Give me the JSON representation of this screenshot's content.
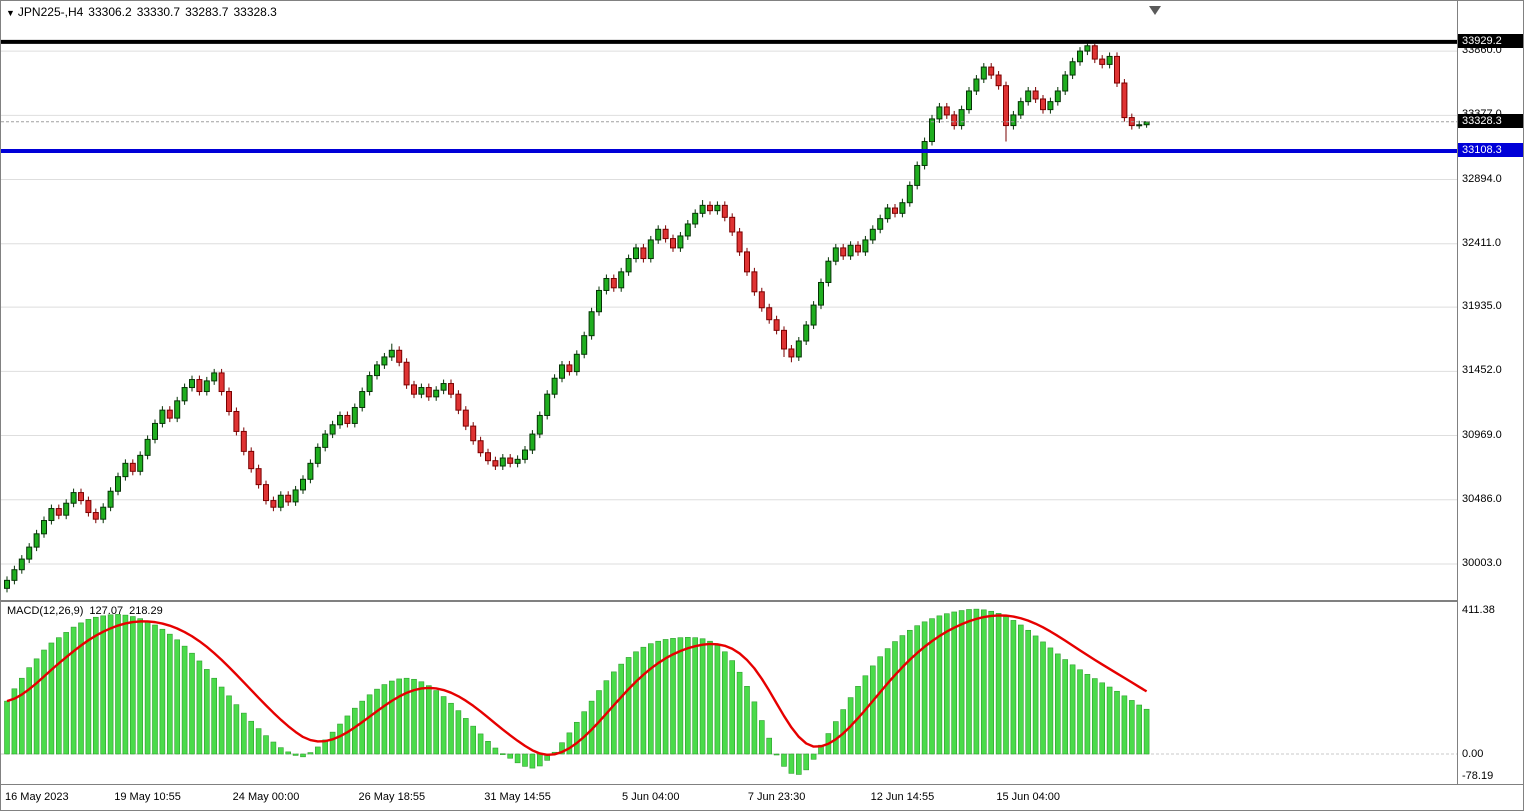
{
  "header": {
    "dropdown_icon": "▼",
    "symbol_period": "JPN225-,H4",
    "open": "33306.2",
    "high": "33330.7",
    "low": "33283.7",
    "close": "33328.3"
  },
  "indicator": {
    "name": "MACD(12,26,9)",
    "macd_value": "127.07",
    "signal_value": "218.29"
  },
  "colors": {
    "bull": "#1FAE1F",
    "bull_border": "#063306",
    "bear": "#DF3333",
    "bear_border": "#7A0000",
    "macd_bar": "#4ADB4A",
    "macd_bar_border": "#2E9E2E",
    "signal_line": "#E60000",
    "level_black": "#000000",
    "level_blue": "#0000D8",
    "grid": "#DEDEDE",
    "zero_line": "#C8C8C8",
    "current_price_line": "#A0A0A0",
    "axis_text": "#000000",
    "background": "#FFFFFF"
  },
  "chart_data": [
    {
      "type": "candlestick",
      "symbol": "JPN225-",
      "timeframe": "H4",
      "y_ticks": [
        30003.0,
        30486.0,
        30969.0,
        31452.0,
        31935.0,
        32411.0,
        32894.0,
        33377.0,
        33860.0
      ],
      "ylim": [
        29780,
        33990
      ],
      "x_ticks": [
        {
          "label": "16 May 2023",
          "bar": 0
        },
        {
          "label": "19 May 10:55",
          "bar": 19
        },
        {
          "label": "24 May 00:00",
          "bar": 35
        },
        {
          "label": "26 May 18:55",
          "bar": 52
        },
        {
          "label": "31 May 14:55",
          "bar": 69
        },
        {
          "label": "5 Jun 04:00",
          "bar": 87
        },
        {
          "label": "7 Jun 23:30",
          "bar": 104
        },
        {
          "label": "12 Jun 14:55",
          "bar": 121
        },
        {
          "label": "15 Jun 04:00",
          "bar": 138
        }
      ],
      "hlines": [
        {
          "price": 33929.2,
          "color": "#000000",
          "width": 4
        },
        {
          "price": 33108.3,
          "color": "#0000D8",
          "width": 4
        }
      ],
      "current_price": 33328.3,
      "price_tags": [
        {
          "price": 33929.2,
          "text": "33929.2",
          "bg": "#000000"
        },
        {
          "price": 33328.3,
          "text": "33328.3",
          "bg": "#000000"
        },
        {
          "price": 33108.3,
          "text": "33108.3",
          "bg": "#0000D8"
        }
      ],
      "ohlc": [
        [
          29820,
          29910,
          29790,
          29880
        ],
        [
          29880,
          29990,
          29850,
          29960
        ],
        [
          29960,
          30070,
          29930,
          30040
        ],
        [
          30040,
          30160,
          30010,
          30130
        ],
        [
          30130,
          30260,
          30100,
          30230
        ],
        [
          30230,
          30360,
          30200,
          30330
        ],
        [
          30330,
          30450,
          30300,
          30420
        ],
        [
          30420,
          30450,
          30340,
          30370
        ],
        [
          30370,
          30490,
          30340,
          30460
        ],
        [
          30460,
          30570,
          30430,
          30540
        ],
        [
          30540,
          30570,
          30450,
          30480
        ],
        [
          30480,
          30510,
          30360,
          30390
        ],
        [
          30390,
          30420,
          30310,
          30340
        ],
        [
          30340,
          30460,
          30310,
          30430
        ],
        [
          30430,
          30580,
          30400,
          30550
        ],
        [
          30550,
          30690,
          30520,
          30660
        ],
        [
          30660,
          30790,
          30630,
          30760
        ],
        [
          30760,
          30790,
          30670,
          30700
        ],
        [
          30700,
          30850,
          30670,
          30820
        ],
        [
          30820,
          30970,
          30790,
          30940
        ],
        [
          30940,
          31090,
          30910,
          31060
        ],
        [
          31060,
          31190,
          31030,
          31160
        ],
        [
          31160,
          31190,
          31070,
          31100
        ],
        [
          31100,
          31260,
          31070,
          31230
        ],
        [
          31230,
          31360,
          31200,
          31330
        ],
        [
          31330,
          31420,
          31300,
          31390
        ],
        [
          31390,
          31420,
          31270,
          31300
        ],
        [
          31300,
          31410,
          31270,
          31380
        ],
        [
          31380,
          31470,
          31350,
          31440
        ],
        [
          31440,
          31470,
          31270,
          31300
        ],
        [
          31300,
          31330,
          31120,
          31150
        ],
        [
          31150,
          31180,
          30970,
          31000
        ],
        [
          31000,
          31030,
          30820,
          30850
        ],
        [
          30850,
          30880,
          30690,
          30720
        ],
        [
          30720,
          30750,
          30570,
          30600
        ],
        [
          30600,
          30630,
          30450,
          30480
        ],
        [
          30480,
          30510,
          30400,
          30430
        ],
        [
          30430,
          30550,
          30400,
          30520
        ],
        [
          30520,
          30550,
          30440,
          30470
        ],
        [
          30470,
          30590,
          30440,
          30560
        ],
        [
          30560,
          30670,
          30530,
          30640
        ],
        [
          30640,
          30790,
          30610,
          30760
        ],
        [
          30760,
          30910,
          30730,
          30880
        ],
        [
          30880,
          31010,
          30850,
          30980
        ],
        [
          30980,
          31080,
          30950,
          31050
        ],
        [
          31050,
          31150,
          31020,
          31120
        ],
        [
          31120,
          31150,
          31030,
          31060
        ],
        [
          31060,
          31210,
          31030,
          31180
        ],
        [
          31180,
          31330,
          31150,
          31300
        ],
        [
          31300,
          31450,
          31270,
          31420
        ],
        [
          31420,
          31530,
          31390,
          31500
        ],
        [
          31500,
          31590,
          31470,
          31560
        ],
        [
          31560,
          31660,
          31530,
          31610
        ],
        [
          31610,
          31640,
          31490,
          31520
        ],
        [
          31520,
          31550,
          31320,
          31350
        ],
        [
          31350,
          31380,
          31250,
          31280
        ],
        [
          31280,
          31360,
          31250,
          31330
        ],
        [
          31330,
          31360,
          31230,
          31260
        ],
        [
          31260,
          31340,
          31230,
          31310
        ],
        [
          31310,
          31390,
          31280,
          31360
        ],
        [
          31360,
          31390,
          31250,
          31280
        ],
        [
          31280,
          31310,
          31130,
          31160
        ],
        [
          31160,
          31190,
          31010,
          31040
        ],
        [
          31040,
          31070,
          30900,
          30930
        ],
        [
          30930,
          30960,
          30810,
          30840
        ],
        [
          30840,
          30870,
          30750,
          30780
        ],
        [
          30780,
          30810,
          30710,
          30740
        ],
        [
          30740,
          30830,
          30710,
          30800
        ],
        [
          30800,
          30830,
          30730,
          30760
        ],
        [
          30760,
          30820,
          30730,
          30790
        ],
        [
          30790,
          30890,
          30760,
          30860
        ],
        [
          30860,
          31010,
          30830,
          30980
        ],
        [
          30980,
          31150,
          30950,
          31120
        ],
        [
          31120,
          31310,
          31090,
          31280
        ],
        [
          31280,
          31430,
          31250,
          31400
        ],
        [
          31400,
          31530,
          31370,
          31500
        ],
        [
          31500,
          31530,
          31420,
          31450
        ],
        [
          31450,
          31610,
          31420,
          31580
        ],
        [
          31580,
          31750,
          31550,
          31720
        ],
        [
          31720,
          31930,
          31690,
          31900
        ],
        [
          31900,
          32090,
          31870,
          32060
        ],
        [
          32060,
          32180,
          32030,
          32150
        ],
        [
          32150,
          32180,
          32050,
          32080
        ],
        [
          32080,
          32230,
          32050,
          32200
        ],
        [
          32200,
          32330,
          32170,
          32300
        ],
        [
          32300,
          32410,
          32270,
          32380
        ],
        [
          32380,
          32410,
          32270,
          32300
        ],
        [
          32300,
          32470,
          32270,
          32440
        ],
        [
          32440,
          32550,
          32410,
          32520
        ],
        [
          32520,
          32550,
          32420,
          32450
        ],
        [
          32450,
          32480,
          32350,
          32380
        ],
        [
          32380,
          32500,
          32350,
          32470
        ],
        [
          32470,
          32590,
          32440,
          32560
        ],
        [
          32560,
          32670,
          32530,
          32640
        ],
        [
          32640,
          32740,
          32610,
          32700
        ],
        [
          32700,
          32730,
          32630,
          32660
        ],
        [
          32660,
          32730,
          32630,
          32700
        ],
        [
          32700,
          32730,
          32580,
          32610
        ],
        [
          32610,
          32640,
          32470,
          32500
        ],
        [
          32500,
          32530,
          32320,
          32350
        ],
        [
          32350,
          32380,
          32170,
          32200
        ],
        [
          32200,
          32230,
          32020,
          32050
        ],
        [
          32050,
          32080,
          31900,
          31930
        ],
        [
          31930,
          31960,
          31810,
          31840
        ],
        [
          31840,
          31870,
          31730,
          31760
        ],
        [
          31760,
          31790,
          31560,
          31620
        ],
        [
          31620,
          31650,
          31520,
          31560
        ],
        [
          31560,
          31710,
          31530,
          31680
        ],
        [
          31680,
          31830,
          31650,
          31800
        ],
        [
          31800,
          31980,
          31770,
          31950
        ],
        [
          31950,
          32150,
          31920,
          32120
        ],
        [
          32120,
          32310,
          32090,
          32280
        ],
        [
          32280,
          32410,
          32250,
          32380
        ],
        [
          32380,
          32410,
          32290,
          32320
        ],
        [
          32320,
          32430,
          32290,
          32400
        ],
        [
          32400,
          32430,
          32320,
          32350
        ],
        [
          32350,
          32470,
          32320,
          32440
        ],
        [
          32440,
          32550,
          32410,
          32520
        ],
        [
          32520,
          32630,
          32490,
          32600
        ],
        [
          32600,
          32710,
          32570,
          32680
        ],
        [
          32680,
          32710,
          32610,
          32640
        ],
        [
          32640,
          32750,
          32610,
          32720
        ],
        [
          32720,
          32880,
          32690,
          32850
        ],
        [
          32850,
          33030,
          32820,
          33000
        ],
        [
          33000,
          33210,
          32970,
          33180
        ],
        [
          33180,
          33380,
          33150,
          33350
        ],
        [
          33350,
          33470,
          33320,
          33440
        ],
        [
          33440,
          33470,
          33350,
          33380
        ],
        [
          33380,
          33410,
          33270,
          33300
        ],
        [
          33300,
          33450,
          33270,
          33420
        ],
        [
          33420,
          33590,
          33390,
          33560
        ],
        [
          33560,
          33680,
          33530,
          33650
        ],
        [
          33650,
          33770,
          33620,
          33740
        ],
        [
          33740,
          33770,
          33650,
          33680
        ],
        [
          33680,
          33710,
          33570,
          33600
        ],
        [
          33600,
          33630,
          33180,
          33300
        ],
        [
          33300,
          33410,
          33270,
          33380
        ],
        [
          33380,
          33510,
          33350,
          33480
        ],
        [
          33480,
          33590,
          33450,
          33560
        ],
        [
          33560,
          33590,
          33470,
          33500
        ],
        [
          33500,
          33530,
          33390,
          33420
        ],
        [
          33420,
          33510,
          33390,
          33480
        ],
        [
          33480,
          33590,
          33450,
          33560
        ],
        [
          33560,
          33710,
          33530,
          33680
        ],
        [
          33680,
          33810,
          33650,
          33780
        ],
        [
          33780,
          33890,
          33750,
          33860
        ],
        [
          33860,
          33929.2,
          33830,
          33900
        ],
        [
          33900,
          33915,
          33770,
          33800
        ],
        [
          33800,
          33830,
          33730,
          33760
        ],
        [
          33760,
          33850,
          33730,
          33820
        ],
        [
          33820,
          33850,
          33590,
          33620
        ],
        [
          33620,
          33650,
          33330,
          33360
        ],
        [
          33360,
          33390,
          33270,
          33300
        ],
        [
          33300,
          33336,
          33276,
          33306
        ],
        [
          33306.2,
          33330.7,
          33283.7,
          33328.3
        ]
      ]
    },
    {
      "type": "bar",
      "name": "MACD(12,26,9)",
      "macd_value": 127.07,
      "signal_value": 218.29,
      "signal_period": 9,
      "y_ticks": [
        411.38,
        0,
        -78.19
      ],
      "ylim": [
        -78.19,
        411.38
      ],
      "values": [
        150,
        185,
        215,
        245,
        270,
        295,
        315,
        330,
        345,
        360,
        372,
        382,
        388,
        392,
        395,
        396,
        394,
        390,
        384,
        376,
        366,
        354,
        340,
        324,
        306,
        286,
        264,
        240,
        215,
        190,
        165,
        140,
        116,
        93,
        72,
        52,
        34,
        18,
        6,
        -4,
        -8,
        4,
        20,
        40,
        62,
        85,
        108,
        130,
        150,
        168,
        184,
        197,
        207,
        213,
        215,
        212,
        205,
        194,
        180,
        163,
        144,
        123,
        101,
        79,
        57,
        36,
        17,
        1,
        -12,
        -25,
        -35,
        -40,
        -34,
        -18,
        5,
        32,
        60,
        90,
        120,
        150,
        180,
        208,
        233,
        255,
        274,
        290,
        303,
        313,
        320,
        325,
        328,
        330,
        331,
        330,
        327,
        320,
        308,
        290,
        265,
        232,
        192,
        148,
        95,
        45,
        0,
        -35,
        -55,
        -58,
        -45,
        -15,
        25,
        58,
        92,
        126,
        160,
        192,
        222,
        250,
        276,
        299,
        319,
        336,
        351,
        364,
        375,
        384,
        392,
        398,
        403,
        407,
        410,
        411,
        409,
        405,
        399,
        390,
        379,
        366,
        351,
        335,
        318,
        301,
        284,
        268,
        253,
        239,
        226,
        214,
        202,
        190,
        178,
        165,
        152,
        139,
        127
      ]
    }
  ]
}
